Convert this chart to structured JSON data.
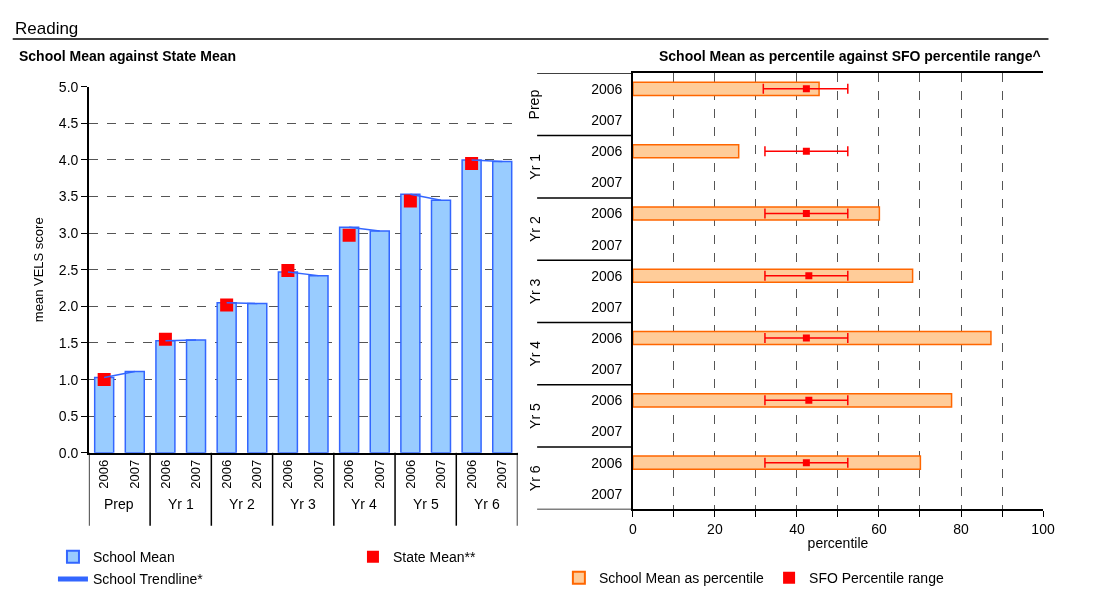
{
  "chart_data": [
    {
      "type": "bar",
      "title": "Reading",
      "subtitle": "School Mean against State Mean",
      "ylabel": "mean VELS score",
      "categories": [
        "2006",
        "2007",
        "2006",
        "2007",
        "2006",
        "2007",
        "2006",
        "2007",
        "2006",
        "2007",
        "2006",
        "2007",
        "2006",
        "2007"
      ],
      "annotations": [
        "Prep",
        "Yr 1",
        "Yr 2",
        "Yr 3",
        "Yr 4",
        "Yr 5",
        "Yr 6"
      ],
      "series": [
        {
          "name": "School Mean",
          "color": "#99ccff",
          "values": [
            1.03,
            1.11,
            1.53,
            1.54,
            2.05,
            2.04,
            2.47,
            2.42,
            3.08,
            3.03,
            3.53,
            3.45,
            4.0,
            3.98
          ]
        },
        {
          "name": "State Mean**",
          "type": "scatter",
          "marker": "square",
          "color": "#ff0000",
          "values": [
            1.0,
            null,
            1.55,
            null,
            2.02,
            null,
            2.49,
            null,
            2.97,
            null,
            3.44,
            null,
            3.95,
            null
          ]
        },
        {
          "name": "School Trendline*",
          "type": "line",
          "color": "#3366ff",
          "values": [
            1.03,
            1.11,
            1.53,
            1.54,
            2.05,
            2.04,
            2.47,
            2.42,
            3.08,
            3.03,
            3.53,
            3.45,
            4.0,
            3.98
          ]
        }
      ],
      "ylim": [
        0,
        5
      ],
      "yticks": [
        {
          "value": 0,
          "label": "0.0"
        },
        {
          "value": 0.5,
          "label": "0.5"
        },
        {
          "value": 1,
          "label": "1.0"
        },
        {
          "value": 1.5,
          "label": "1.5"
        },
        {
          "value": 2,
          "label": "2.0"
        },
        {
          "value": 2.5,
          "label": "2.5"
        },
        {
          "value": 3,
          "label": "3.0"
        },
        {
          "value": 3.5,
          "label": "3.5"
        },
        {
          "value": 4,
          "label": "4.0"
        },
        {
          "value": 4.5,
          "label": "4.5"
        },
        {
          "value": 5,
          "label": "5.0"
        }
      ],
      "grid": "y",
      "legend": "bottom"
    },
    {
      "type": "bar",
      "orientation": "horizontal",
      "title": "School Mean as percentile against SFO percentile range^",
      "xlabel": "percentile",
      "categories": [
        "2006",
        "2007",
        "2006",
        "2007",
        "2006",
        "2007",
        "2006",
        "2007",
        "2006",
        "2007",
        "2006",
        "2007",
        "2006",
        "2007"
      ],
      "annotations": [
        "Prep",
        "Yr 1",
        "Yr 2",
        "Yr 3",
        "Yr 4",
        "Yr 5",
        "Yr 6"
      ],
      "series": [
        {
          "name": "School Mean as percentile",
          "color": "#ffcc99",
          "values": [
            45.4,
            null,
            25.8,
            null,
            60.1,
            null,
            68.2,
            null,
            87.3,
            null,
            77.7,
            null,
            70.1,
            null
          ]
        },
        {
          "name": "SFO Percentile range",
          "type": "scatter",
          "marker": "square",
          "color": "#ff0000",
          "values": [
            42.3,
            null,
            42.3,
            null,
            42.3,
            null,
            42.9,
            null,
            42.3,
            null,
            42.9,
            null,
            42.3,
            null
          ],
          "errors": [
            [
              31.8,
              52.4
            ],
            null,
            [
              32.2,
              52.4
            ],
            null,
            [
              32.2,
              52.4
            ],
            null,
            [
              32.2,
              52.4
            ],
            null,
            [
              32.2,
              52.4
            ],
            null,
            [
              32.2,
              52.4
            ],
            null,
            [
              32.2,
              52.4
            ],
            null
          ]
        }
      ],
      "xlim": [
        0,
        100
      ],
      "xticks": [
        0,
        {
          "value": 10,
          "label": null
        },
        20,
        {
          "value": 30,
          "label": null
        },
        40,
        {
          "value": 50,
          "label": null
        },
        60,
        {
          "value": 70,
          "label": null
        },
        80,
        {
          "value": 90,
          "label": null
        },
        100
      ],
      "grid": "x",
      "legend": "bottom"
    }
  ]
}
